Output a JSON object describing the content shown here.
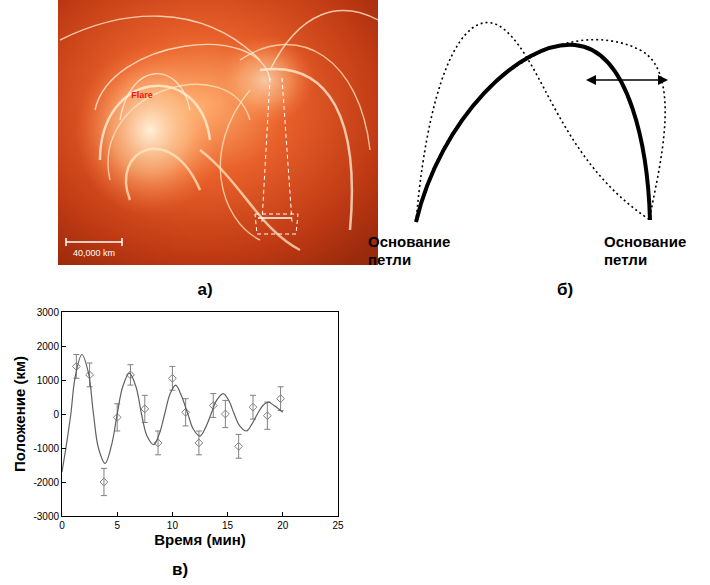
{
  "panels": {
    "a": {
      "label": "а)",
      "flare_label": "Flare",
      "scale_bar": "40,000 km"
    },
    "b": {
      "label": "б)",
      "footpoint_labels": [
        "Основание петли",
        "Основание петли"
      ]
    }
  },
  "chart_data": {
    "type": "scatter",
    "label": "в)",
    "x_label": "Время (мин)",
    "y_label": "Положение (км)",
    "xlim": [
      0,
      25
    ],
    "xticks": [
      0,
      5,
      10,
      15,
      20,
      25
    ],
    "ylim": [
      -3000,
      3000
    ],
    "yticks": [
      -3000,
      -2000,
      -1000,
      0,
      1000,
      2000,
      3000
    ],
    "grid": false,
    "series": [
      {
        "type": "scatter",
        "marker": "diamond-open",
        "color": "#808080",
        "x": [
          1.3,
          2.5,
          3.8,
          5.0,
          6.2,
          7.5,
          8.7,
          10.0,
          11.2,
          12.4,
          13.7,
          14.8,
          16.0,
          17.3,
          18.6,
          19.8
        ],
        "values": [
          1400,
          1150,
          -2000,
          -100,
          1150,
          150,
          -850,
          1050,
          50,
          -850,
          250,
          0,
          -950,
          200,
          -50,
          450
        ],
        "errors": [
          350,
          350,
          400,
          400,
          300,
          400,
          350,
          350,
          400,
          350,
          350,
          400,
          350,
          350,
          400,
          350
        ]
      },
      {
        "type": "line",
        "line_style": "solid",
        "color": "#606060",
        "x": [
          0,
          0.4,
          0.8,
          1.2,
          1.8,
          2.4,
          2.85,
          3.3,
          3.9,
          4.5,
          5.0,
          5.5,
          6.1,
          6.7,
          7.2,
          7.7,
          8.3,
          8.8,
          9.3,
          9.8,
          10.3,
          10.8,
          11.4,
          11.9,
          12.5,
          13.0,
          13.5,
          14.0,
          14.6,
          15.1,
          15.6,
          16.1,
          16.7,
          17.2,
          17.7,
          18.2,
          18.7,
          19.2,
          20.0
        ],
        "values": [
          -1700,
          -900,
          0,
          1100,
          1750,
          1200,
          0,
          -1000,
          -1450,
          -900,
          0,
          800,
          1200,
          800,
          0,
          -650,
          -900,
          -600,
          0,
          600,
          850,
          550,
          0,
          -450,
          -650,
          -400,
          0,
          400,
          600,
          400,
          0,
          -350,
          -500,
          -300,
          0,
          250,
          350,
          250,
          50
        ]
      }
    ]
  }
}
